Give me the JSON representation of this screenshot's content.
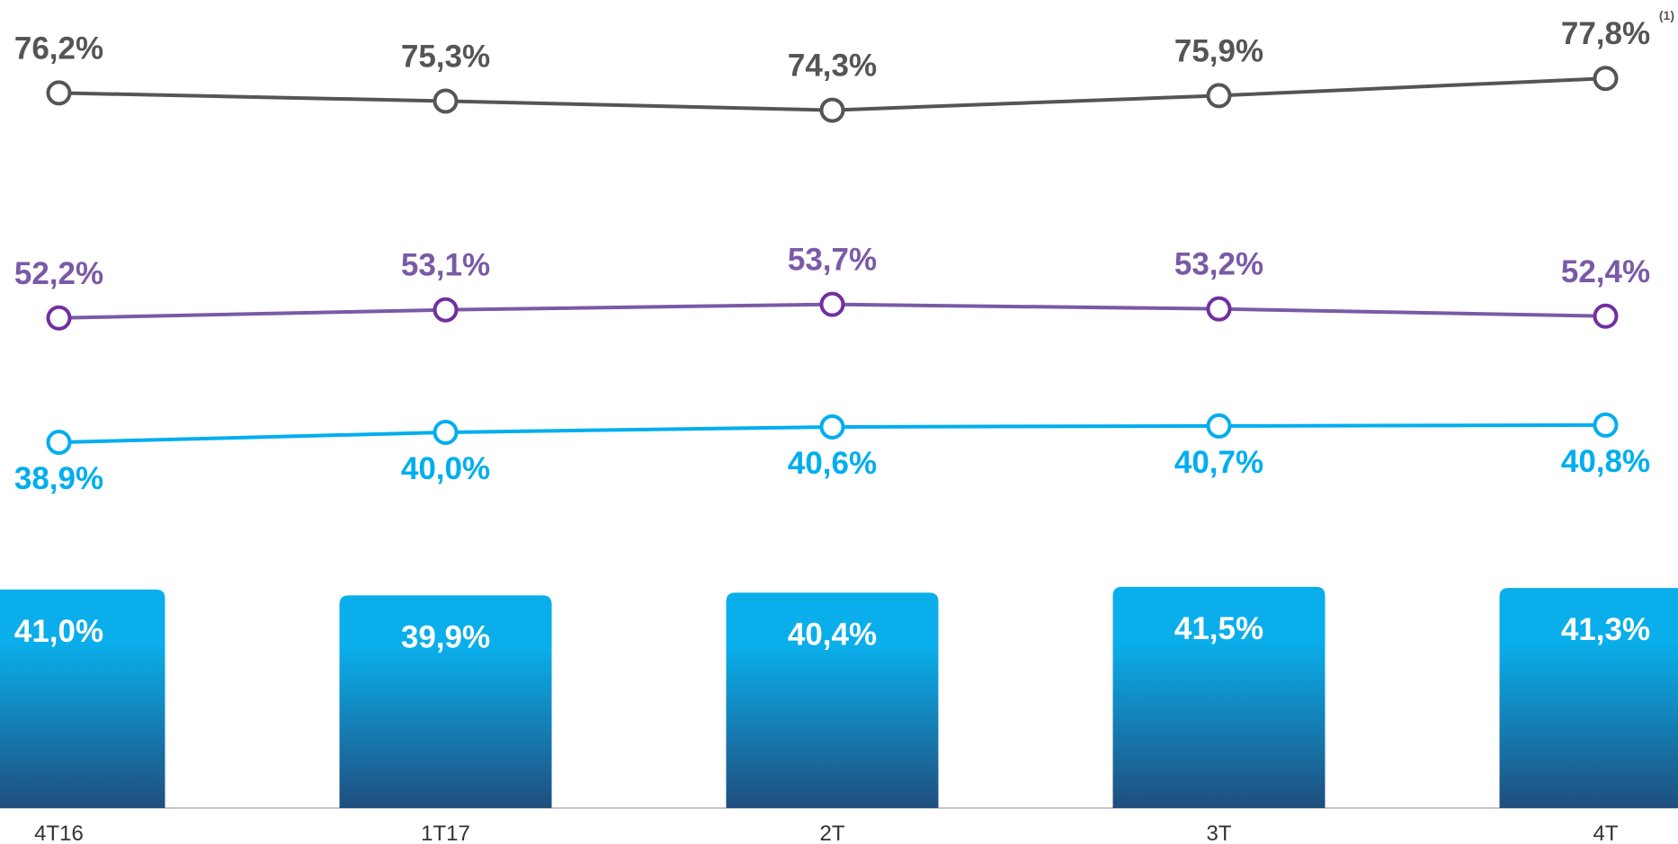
{
  "chart_data": {
    "type": "combo",
    "categories": [
      "4T16",
      "1T17",
      "2T",
      "3T",
      "4T"
    ],
    "series": [
      {
        "type": "bar",
        "color": "#0aaeea",
        "values": [
          41.0,
          39.9,
          40.4,
          41.5,
          41.3
        ],
        "value_labels": [
          "41,0%",
          "39,9%",
          "40,4%",
          "41,5%",
          "41,3%"
        ]
      },
      {
        "type": "line",
        "color": "#555555",
        "values": [
          76.2,
          75.3,
          74.3,
          75.9,
          77.8
        ],
        "value_labels": [
          "76,2%",
          "75,3%",
          "74,3%",
          "75,9%",
          "77,8%"
        ]
      },
      {
        "type": "line",
        "color": "#7a5aa6",
        "values": [
          52.2,
          53.1,
          53.7,
          53.2,
          52.4
        ],
        "value_labels": [
          "52,2%",
          "53,1%",
          "53,7%",
          "53,2%",
          "52,4%"
        ]
      },
      {
        "type": "line",
        "color": "#00aeef",
        "values": [
          38.9,
          40.0,
          40.6,
          40.7,
          40.8
        ],
        "value_labels": [
          "38,9%",
          "40,0%",
          "40,6%",
          "40,7%",
          "40,8%"
        ]
      }
    ],
    "annotations": [
      "(1)"
    ]
  }
}
